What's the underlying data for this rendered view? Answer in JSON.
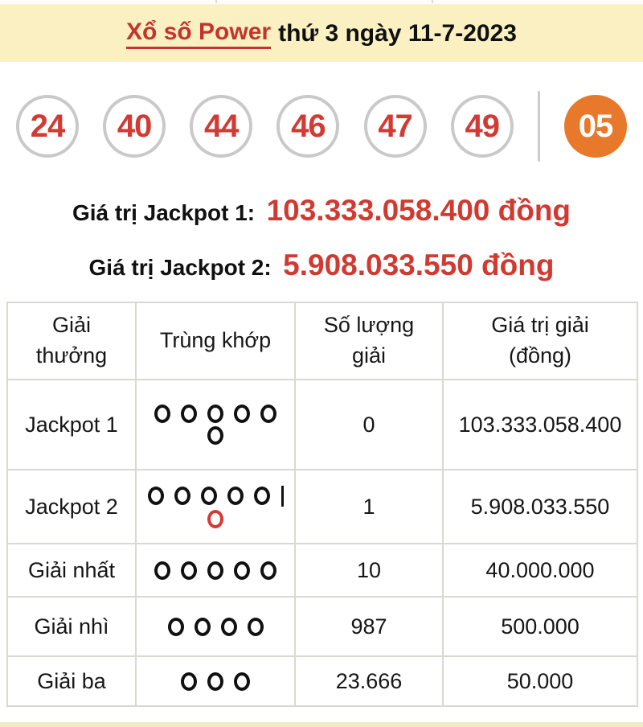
{
  "header": {
    "title_link": "Xổ số Power",
    "title_rest": "thứ 3 ngày 11-7-2023"
  },
  "balls": {
    "white": [
      "24",
      "40",
      "44",
      "46",
      "47",
      "49"
    ],
    "power": "05"
  },
  "jackpots": [
    {
      "label": "Giá trị Jackpot 1:",
      "value": "103.333.058.400 đồng"
    },
    {
      "label": "Giá trị Jackpot 2:",
      "value": "5.908.033.550 đồng"
    }
  ],
  "table": {
    "headers": [
      "Giải\nthưởng",
      "Trùng khớp",
      "Số lượng\ngiải",
      "Giá trị giải\n(đồng)"
    ],
    "rows": [
      {
        "label": "Jackpot 1",
        "match": {
          "lines": [
            {
              "circles": 5,
              "color": "black",
              "bar": false
            },
            {
              "circles": 1,
              "color": "black",
              "bar": false
            }
          ]
        },
        "count": "0",
        "value": "103.333.058.400",
        "value_red": true
      },
      {
        "label": "Jackpot 2",
        "match": {
          "lines": [
            {
              "circles": 5,
              "color": "black",
              "bar": true
            },
            {
              "circles": 1,
              "color": "red",
              "bar": false
            }
          ]
        },
        "count": "1",
        "value": "5.908.033.550",
        "value_red": true
      },
      {
        "label": "Giải nhất",
        "match": {
          "lines": [
            {
              "circles": 5,
              "color": "black",
              "bar": false
            }
          ]
        },
        "count": "10",
        "value": "40.000.000",
        "value_red": false
      },
      {
        "label": "Giải nhì",
        "match": {
          "lines": [
            {
              "circles": 4,
              "color": "black",
              "bar": false
            }
          ]
        },
        "count": "987",
        "value": "500.000",
        "value_red": false
      },
      {
        "label": "Giải ba",
        "match": {
          "lines": [
            {
              "circles": 3,
              "color": "black",
              "bar": false
            }
          ]
        },
        "count": "23.666",
        "value": "50.000",
        "value_red": false
      }
    ]
  },
  "colors": {
    "accent_red": "#c94540",
    "title_red": "#c5342c",
    "power_orange": "#e8782a",
    "band_beige": "#faf0c2",
    "ball_border_gray": "#c9c9c9",
    "table_border": "#d9d9d1"
  }
}
